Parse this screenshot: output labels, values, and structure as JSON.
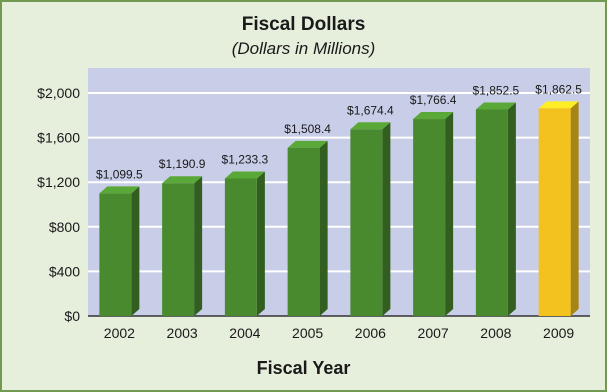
{
  "chart_data": {
    "type": "bar",
    "title": "Fiscal Dollars",
    "subtitle": "(Dollars in Millions)",
    "xlabel": "Fiscal Year",
    "ylabel": "",
    "categories": [
      "2002",
      "2003",
      "2004",
      "2005",
      "2006",
      "2007",
      "2008",
      "2009"
    ],
    "values": [
      1099.5,
      1190.9,
      1233.3,
      1508.4,
      1674.4,
      1766.4,
      1852.5,
      1862.5
    ],
    "data_labels": [
      "$1,099.5",
      "$1,190.9",
      "$1,233.3",
      "$1,508.4",
      "$1,674.4",
      "$1,766.4",
      "$1,852.5",
      "$1,862.5"
    ],
    "ylim": [
      0,
      2000
    ],
    "yticks": [
      0,
      400,
      800,
      1200,
      1600,
      2000
    ],
    "ytick_labels": [
      "$0",
      "$400",
      "$800",
      "$1,200",
      "$1,600",
      "$2,000"
    ],
    "grid": true,
    "legend": "none",
    "colors": {
      "bar": "#4a8a2e",
      "highlight_bar": "#f4c21f",
      "plot_background": "#c8cde8",
      "gridline": "#ffffff",
      "page_background": "#e6eedc",
      "border": "#6f9a4f"
    },
    "highlight_category": "2009"
  }
}
